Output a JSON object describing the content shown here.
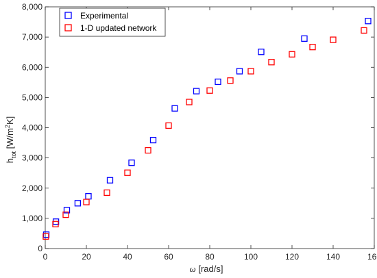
{
  "chart_data": {
    "type": "scatter",
    "title": "",
    "xlabel": {
      "symbol": "ω",
      "rest": " [rad/s]"
    },
    "ylabel": {
      "base": "h",
      "sub": "tot",
      "unit_pre": " [W/m",
      "sup": "2",
      "unit_post": "K]"
    },
    "xlim": [
      0,
      160
    ],
    "ylim": [
      0,
      8000
    ],
    "x_ticks": [
      0,
      20,
      40,
      60,
      80,
      100,
      120,
      140,
      160
    ],
    "x_tick_labels": [
      "0",
      "20",
      "40",
      "60",
      "80",
      "100",
      "120",
      "140",
      "160"
    ],
    "y_ticks": [
      0,
      1000,
      2000,
      3000,
      4000,
      5000,
      6000,
      7000,
      8000
    ],
    "y_tick_labels": [
      "0",
      "1,000",
      "2,000",
      "3,000",
      "4,000",
      "5,000",
      "6,000",
      "7,000",
      "8,000"
    ],
    "grid": false,
    "legend_position": "top-left",
    "series": [
      {
        "name": "Experimental",
        "color": "#0000ff",
        "marker": "square",
        "x": [
          0.5,
          5.2,
          10.5,
          15.8,
          21.0,
          31.5,
          42.0,
          52.5,
          63.0,
          73.5,
          84.0,
          94.5,
          105.0,
          126.0,
          157.0
        ],
        "y": [
          460,
          890,
          1270,
          1500,
          1730,
          2260,
          2840,
          3590,
          4640,
          5210,
          5520,
          5870,
          6510,
          6950,
          7530
        ]
      },
      {
        "name": "1-D updated network",
        "color": "#ff0000",
        "marker": "square",
        "x": [
          0.3,
          5.0,
          10.0,
          20.0,
          30.0,
          40.0,
          50.0,
          60.0,
          70.0,
          80.0,
          90.0,
          100.0,
          110.0,
          120.0,
          130.0,
          140.0,
          155.0
        ],
        "y": [
          400,
          810,
          1120,
          1540,
          1850,
          2510,
          3250,
          4070,
          4850,
          5230,
          5560,
          5870,
          6170,
          6430,
          6670,
          6910,
          7220
        ]
      }
    ]
  }
}
